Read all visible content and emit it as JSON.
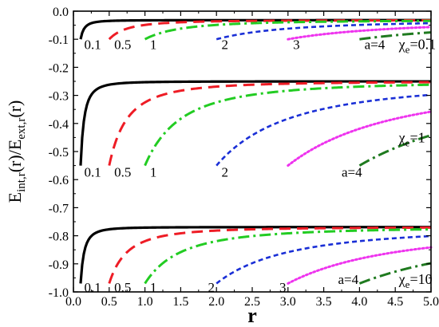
{
  "chart_data": {
    "type": "line",
    "xlabel": "r",
    "ylabel": {
      "base": "E",
      "sub1": "int,r",
      "mid": "(r)/E",
      "sub2": "ext,r",
      "end": "(r)"
    },
    "xlim": [
      0.0,
      5.0
    ],
    "ylim": [
      -1.0,
      0.0
    ],
    "grid": false,
    "x_ticks": [
      "0.0",
      "0.5",
      "1.0",
      "1.5",
      "2.0",
      "2.5",
      "3.0",
      "3.5",
      "4.0",
      "4.5",
      "5.0"
    ],
    "y_ticks": [
      "0.0",
      "-0.1",
      "-0.2",
      "-0.3",
      "-0.4",
      "-0.5",
      "-0.6",
      "-0.7",
      "-0.8",
      "-0.9",
      "-1.0"
    ],
    "styles": [
      {
        "a": 0.1,
        "color": "#000000",
        "dash": "solid"
      },
      {
        "a": 0.5,
        "color": "#ee1c25",
        "dash": "dashed"
      },
      {
        "a": 1,
        "color": "#22cc22",
        "dash": "dashdot"
      },
      {
        "a": 2,
        "color": "#1a2fd6",
        "dash": "shortdash"
      },
      {
        "a": 3,
        "color": "#ee33ee",
        "dash": "dotted"
      },
      {
        "a": 4,
        "color": "#1f7a1f",
        "dash": "dashdot"
      }
    ],
    "panels": [
      {
        "chi_label": {
          "main": "χ",
          "sub": "e",
          "val": "=0.1"
        },
        "chi": 0.1,
        "asymptote": -0.032,
        "start_value": -0.1,
        "a_labels": [
          {
            "text": "0.1",
            "x": 0.15,
            "y": -0.118
          },
          {
            "text": "0.5",
            "x": 0.57,
            "y": -0.118
          },
          {
            "text": "1",
            "x": 1.07,
            "y": -0.118
          },
          {
            "text": "2",
            "x": 2.07,
            "y": -0.118
          },
          {
            "text": "3",
            "x": 3.07,
            "y": -0.118
          },
          {
            "text": "a=4",
            "x": 4.07,
            "y": -0.118
          }
        ]
      },
      {
        "chi_label": {
          "main": "χ",
          "sub": "e",
          "val": "=1"
        },
        "chi": 1,
        "asymptote": -0.25,
        "start_value": -0.55,
        "a_labels": [
          {
            "text": "0.1",
            "x": 0.15,
            "y": -0.572
          },
          {
            "text": "0.5",
            "x": 0.57,
            "y": -0.572
          },
          {
            "text": "1",
            "x": 1.07,
            "y": -0.572
          },
          {
            "text": "2",
            "x": 2.07,
            "y": -0.572
          },
          {
            "text": "a=4",
            "x": 3.75,
            "y": -0.572
          }
        ]
      },
      {
        "chi_label": {
          "main": "χ",
          "sub": "e",
          "val": "=10"
        },
        "chi": 10,
        "asymptote": -0.769,
        "start_value": -0.97,
        "a_labels": [
          {
            "text": "0.1",
            "x": 0.15,
            "y": -0.983
          },
          {
            "text": "0.5",
            "x": 0.57,
            "y": -0.983
          },
          {
            "text": "1",
            "x": 1.07,
            "y": -0.983
          },
          {
            "text": "2",
            "x": 1.88,
            "y": -0.983
          },
          {
            "text": "3",
            "x": 2.88,
            "y": -0.983
          },
          {
            "text": "a=4",
            "x": 3.7,
            "y": -0.955
          }
        ]
      }
    ]
  }
}
